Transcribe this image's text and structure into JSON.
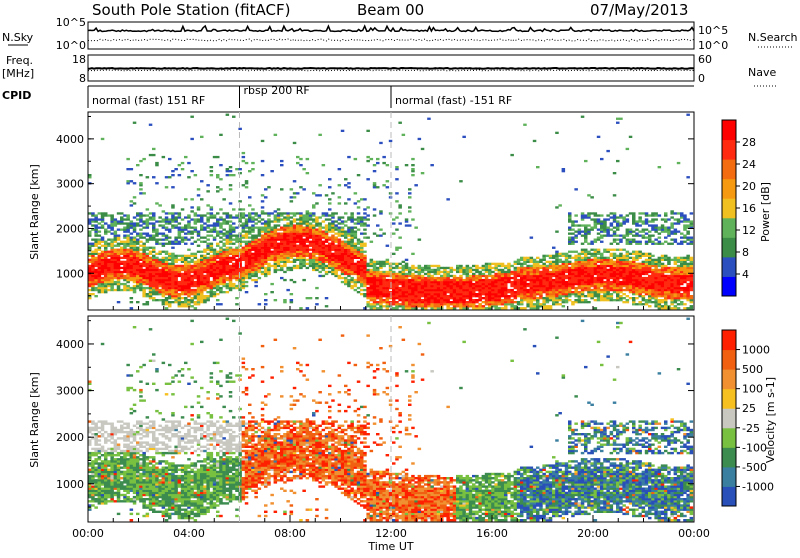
{
  "header": {
    "station": "South Pole Station (fitACF)",
    "beam": "Beam 00",
    "date": "07/May/2013"
  },
  "top_panels": {
    "nsky_label": "N.Sky",
    "nsearch_label": "N.Search",
    "freq_label_1": "Freq.",
    "freq_label_2": "[MHz]",
    "nave_label": "Nave",
    "cpid_label": "CPID",
    "noise_left_ticks": [
      "10^5",
      "10^0"
    ],
    "noise_right_ticks": [
      "10^5",
      "10^0"
    ],
    "freq_ticks": [
      "18",
      "8"
    ],
    "nave_ticks": [
      "60",
      "0"
    ],
    "cpid_segments": [
      {
        "label": "normal (fast) 151 RF",
        "start": 0
      },
      {
        "label": "rbsp 200 RF",
        "start": 6
      },
      {
        "label": "normal (fast) -151 RF",
        "start": 12
      }
    ]
  },
  "chart_data": [
    {
      "type": "heatmap",
      "name": "power",
      "ylabel": "Slant Range [km]",
      "colorbar_label": "Power [dB]",
      "colorbar_ticks": [
        "28",
        "24",
        "20",
        "16",
        "12",
        "8",
        "4"
      ],
      "colorbar_colors": [
        "#0000ff",
        "#2c4fbf",
        "#3a8c46",
        "#5fb25a",
        "#f0c020",
        "#f59a10",
        "#f36c10",
        "#ff2a10",
        "#ff0000"
      ],
      "ylim": [
        180,
        4600
      ],
      "yticks": [
        "1000",
        "2000",
        "3000",
        "4000"
      ],
      "xlim": [
        0,
        24
      ]
    },
    {
      "type": "heatmap",
      "name": "velocity",
      "ylabel": "Slant Range [km]",
      "xlabel": "Time UT",
      "colorbar_label": "Velocity [m s-1]",
      "colorbar_ticks": [
        "1000",
        "500",
        "100",
        "25",
        "-25",
        "-100",
        "-500",
        "-1000"
      ],
      "colorbar_colors": [
        "#2850b8",
        "#3a7ea0",
        "#3c8c50",
        "#78c040",
        "#c8c8c0",
        "#f5c020",
        "#f09030",
        "#f06010",
        "#ff2000"
      ],
      "ylim": [
        180,
        4600
      ],
      "yticks": [
        "1000",
        "2000",
        "3000",
        "4000"
      ],
      "xticks": [
        "00:00",
        "04:00",
        "08:00",
        "12:00",
        "16:00",
        "20:00",
        "00:00"
      ],
      "xlim": [
        0,
        24
      ]
    }
  ]
}
